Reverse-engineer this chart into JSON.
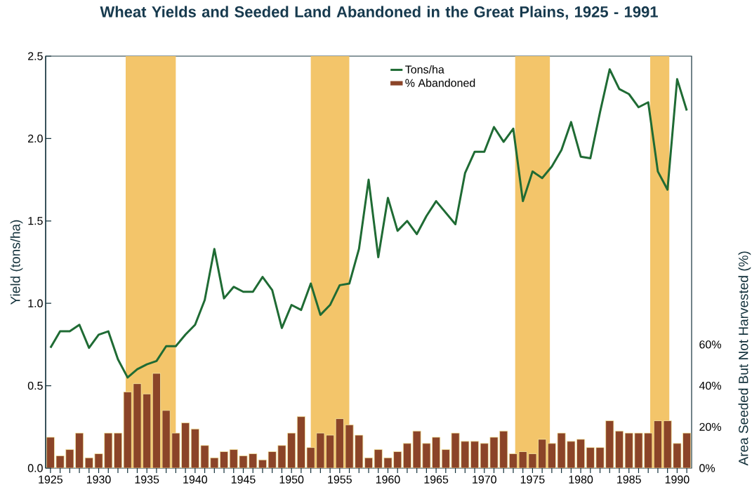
{
  "chart_data": {
    "type": "line",
    "title": "Wheat Yields and Seeded Land Abandoned in the Great Plains, 1925 - 1991",
    "ylabel": "Yield (tons/ha)",
    "y2label": "Area Seeded But Not Harvested (%)",
    "x": [
      1925,
      1926,
      1927,
      1928,
      1929,
      1930,
      1931,
      1932,
      1933,
      1934,
      1935,
      1936,
      1937,
      1938,
      1939,
      1940,
      1941,
      1942,
      1943,
      1944,
      1945,
      1946,
      1947,
      1948,
      1949,
      1950,
      1951,
      1952,
      1953,
      1954,
      1955,
      1956,
      1957,
      1958,
      1959,
      1960,
      1961,
      1962,
      1963,
      1964,
      1965,
      1966,
      1967,
      1968,
      1969,
      1970,
      1971,
      1972,
      1973,
      1974,
      1975,
      1976,
      1977,
      1978,
      1979,
      1980,
      1981,
      1982,
      1983,
      1984,
      1985,
      1986,
      1987,
      1988,
      1989,
      1990,
      1991
    ],
    "xlim": [
      1924.5,
      1991.5
    ],
    "xticks": [
      1925,
      {
        "value": 1926,
        "label": null
      },
      {
        "value": 1927,
        "label": null
      },
      {
        "value": 1928,
        "label": null
      },
      {
        "value": 1929,
        "label": null
      },
      1930,
      {
        "value": 1931,
        "label": null
      },
      {
        "value": 1932,
        "label": null
      },
      {
        "value": 1933,
        "label": null
      },
      {
        "value": 1934,
        "label": null
      },
      1935,
      {
        "value": 1936,
        "label": null
      },
      {
        "value": 1937,
        "label": null
      },
      {
        "value": 1938,
        "label": null
      },
      {
        "value": 1939,
        "label": null
      },
      1940,
      {
        "value": 1941,
        "label": null
      },
      {
        "value": 1942,
        "label": null
      },
      {
        "value": 1943,
        "label": null
      },
      {
        "value": 1944,
        "label": null
      },
      1945,
      {
        "value": 1946,
        "label": null
      },
      {
        "value": 1947,
        "label": null
      },
      {
        "value": 1948,
        "label": null
      },
      {
        "value": 1949,
        "label": null
      },
      1950,
      {
        "value": 1951,
        "label": null
      },
      {
        "value": 1952,
        "label": null
      },
      {
        "value": 1953,
        "label": null
      },
      {
        "value": 1954,
        "label": null
      },
      1955,
      {
        "value": 1956,
        "label": null
      },
      {
        "value": 1957,
        "label": null
      },
      {
        "value": 1958,
        "label": null
      },
      {
        "value": 1959,
        "label": null
      },
      1960,
      {
        "value": 1961,
        "label": null
      },
      {
        "value": 1962,
        "label": null
      },
      {
        "value": 1963,
        "label": null
      },
      {
        "value": 1964,
        "label": null
      },
      1965,
      {
        "value": 1966,
        "label": null
      },
      {
        "value": 1967,
        "label": null
      },
      {
        "value": 1968,
        "label": null
      },
      {
        "value": 1969,
        "label": null
      },
      1970,
      {
        "value": 1971,
        "label": null
      },
      {
        "value": 1972,
        "label": null
      },
      {
        "value": 1973,
        "label": null
      },
      {
        "value": 1974,
        "label": null
      },
      1975,
      {
        "value": 1976,
        "label": null
      },
      {
        "value": 1977,
        "label": null
      },
      {
        "value": 1978,
        "label": null
      },
      {
        "value": 1979,
        "label": null
      },
      1980,
      {
        "value": 1981,
        "label": null
      },
      {
        "value": 1982,
        "label": null
      },
      {
        "value": 1983,
        "label": null
      },
      {
        "value": 1984,
        "label": null
      },
      1985,
      {
        "value": 1986,
        "label": null
      },
      {
        "value": 1987,
        "label": null
      },
      {
        "value": 1988,
        "label": null
      },
      {
        "value": 1989,
        "label": null
      },
      1990,
      {
        "value": 1991,
        "label": null
      }
    ],
    "ylim": [
      0,
      2.5
    ],
    "yticks": [
      {
        "value": 0,
        "label": "0.0"
      },
      {
        "value": 0.5,
        "label": "0.5"
      },
      {
        "value": 1,
        "label": "1.0"
      },
      {
        "value": 1.5,
        "label": "1.5"
      },
      {
        "value": 2,
        "label": "2.0"
      },
      {
        "value": 2.5,
        "label": "2.5"
      }
    ],
    "y2lim": [
      0,
      200
    ],
    "y2ticks": [
      {
        "value": 0,
        "label": "0%"
      },
      {
        "value": 20,
        "label": "20%"
      },
      {
        "value": 40,
        "label": "40%"
      },
      {
        "value": 60,
        "label": "60%"
      }
    ],
    "legend": "top",
    "bands": [
      {
        "axis": "x",
        "from": 1932.8,
        "to": 1938,
        "color": "#f3c56a"
      },
      {
        "axis": "x",
        "from": 1952,
        "to": 1956,
        "color": "#f3c56a"
      },
      {
        "axis": "x",
        "from": 1973.2,
        "to": 1976.8,
        "color": "#f3c56a"
      },
      {
        "axis": "x",
        "from": 1987.2,
        "to": 1989.2,
        "color": "#f3c56a"
      }
    ],
    "series": [
      {
        "name": "Tons/ha",
        "color": "#1f6b34",
        "values": [
          0.73,
          0.83,
          0.83,
          0.87,
          0.73,
          0.81,
          0.83,
          0.66,
          0.55,
          0.6,
          0.63,
          0.65,
          0.74,
          0.74,
          0.81,
          0.87,
          1.02,
          1.33,
          1.03,
          1.1,
          1.07,
          1.07,
          1.16,
          1.08,
          0.85,
          0.99,
          0.96,
          1.12,
          0.93,
          0.99,
          1.11,
          1.12,
          1.33,
          1.75,
          1.28,
          1.64,
          1.44,
          1.5,
          1.42,
          1.53,
          1.62,
          1.55,
          1.48,
          1.79,
          1.92,
          1.92,
          2.07,
          1.98,
          2.06,
          1.62,
          1.8,
          1.76,
          1.83,
          1.93,
          2.1,
          1.89,
          1.88,
          2.16,
          2.42,
          2.3,
          2.27,
          2.19,
          2.22,
          1.8,
          1.69,
          2.36,
          2.17
        ]
      },
      {
        "name": "% Abandoned",
        "type": "bar",
        "axis": "y2",
        "color": "#8b4428",
        "values": [
          15,
          6,
          9,
          17,
          5,
          7,
          17,
          17,
          37,
          41,
          36,
          46,
          28,
          17,
          22,
          19,
          11,
          5,
          8,
          9,
          6,
          7,
          4,
          8,
          11,
          17,
          25,
          10,
          17,
          16,
          24,
          21,
          16,
          5,
          9,
          5,
          8,
          12,
          18,
          12,
          15,
          9,
          17,
          13,
          13,
          12,
          15,
          18,
          7,
          8,
          7,
          14,
          12,
          17,
          13,
          14,
          10,
          10,
          23,
          18,
          17,
          17,
          17,
          23,
          23,
          12,
          17
        ]
      }
    ]
  }
}
